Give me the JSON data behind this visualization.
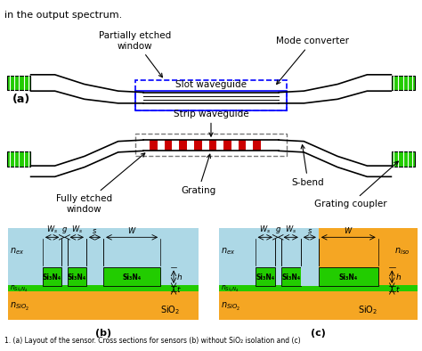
{
  "title_text": "in the output spectrum.",
  "caption": "1. (a) Layout of the sensor. Cross sections for sensors (b) without SiO₂ isolation and (c)",
  "bg_color": "#ffffff",
  "light_blue": "#add8e6",
  "orange": "#f5a623",
  "green": "#22cc00",
  "red": "#cc0000",
  "dark_blue_rect": "#0000cc",
  "gray_dashed": "#888888",
  "black": "#000000",
  "label_a": "(a)",
  "label_b": "(b)",
  "label_c": "(c)",
  "labels": {
    "partially_etched": "Partially etched\nwindow",
    "mode_converter": "Mode converter",
    "slot_waveguide": "Slot waveguide",
    "strip_waveguide": "Strip waveguide",
    "fully_etched": "Fully etched\nwindow",
    "grating": "Grating",
    "s_bend": "S-bend",
    "grating_coupler": "Grating coupler"
  },
  "cross_b": {
    "n_ex": "n_ex",
    "n_si3n4": "n_{Si3N4}",
    "n_sio2": "n_{SiO2}",
    "sio2": "SiO_2",
    "si3n4_labels": [
      "Si₃N₄",
      "Si₃N₄",
      "Si₃N₄"
    ],
    "dim_labels": [
      "W_s",
      "g",
      "W_s",
      "s",
      "W"
    ],
    "h_label": "h",
    "t_label": "t"
  },
  "cross_c": {
    "n_ex": "n_ex",
    "n_iso": "n_{iso}",
    "n_si3n4": "n_{Si3N4}",
    "n_sio2": "n_{SiO2}",
    "sio2": "SiO_2",
    "si3n4_labels": [
      "Si₃N₄",
      "Si₃N₄",
      "Si₃N₄"
    ],
    "dim_labels": [
      "W_s",
      "g",
      "W_s",
      "s",
      "W"
    ],
    "h_label": "h",
    "t_label": "t",
    "n_iso_label": "n_{iso}"
  }
}
